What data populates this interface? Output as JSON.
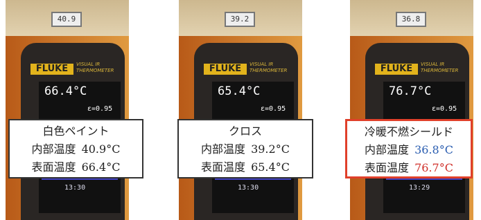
{
  "panels": [
    {
      "thermometer": "40.9",
      "brand": "FLUKE",
      "model": "VISUAL IR THERMOMETER",
      "screen_temp": "66.4°C",
      "emissivity": "ε=0.95",
      "time": "13:30",
      "label": {
        "title": "白色ペイント",
        "rows": [
          {
            "name": "内部温度",
            "value": "40.9°C"
          },
          {
            "name": "表面温度",
            "value": "66.4°C"
          }
        ]
      }
    },
    {
      "thermometer": "39.2",
      "brand": "FLUKE",
      "model": "VISUAL IR THERMOMETER",
      "screen_temp": "65.4°C",
      "emissivity": "ε=0.95",
      "time": "13:30",
      "label": {
        "title": "クロス",
        "rows": [
          {
            "name": "内部温度",
            "value": "39.2°C"
          },
          {
            "name": "表面温度",
            "value": "65.4°C"
          }
        ]
      }
    },
    {
      "thermometer": "36.8",
      "brand": "FLUKE",
      "model": "VISUAL IR THERMOMETER",
      "screen_temp": "76.7°C",
      "emissivity": "ε=0.95",
      "time": "13:29",
      "label": {
        "title": "冷暖不燃シールド",
        "rows": [
          {
            "name": "内部温度",
            "value": "36.8°C"
          },
          {
            "name": "表面温度",
            "value": "76.7°C"
          }
        ]
      }
    }
  ]
}
